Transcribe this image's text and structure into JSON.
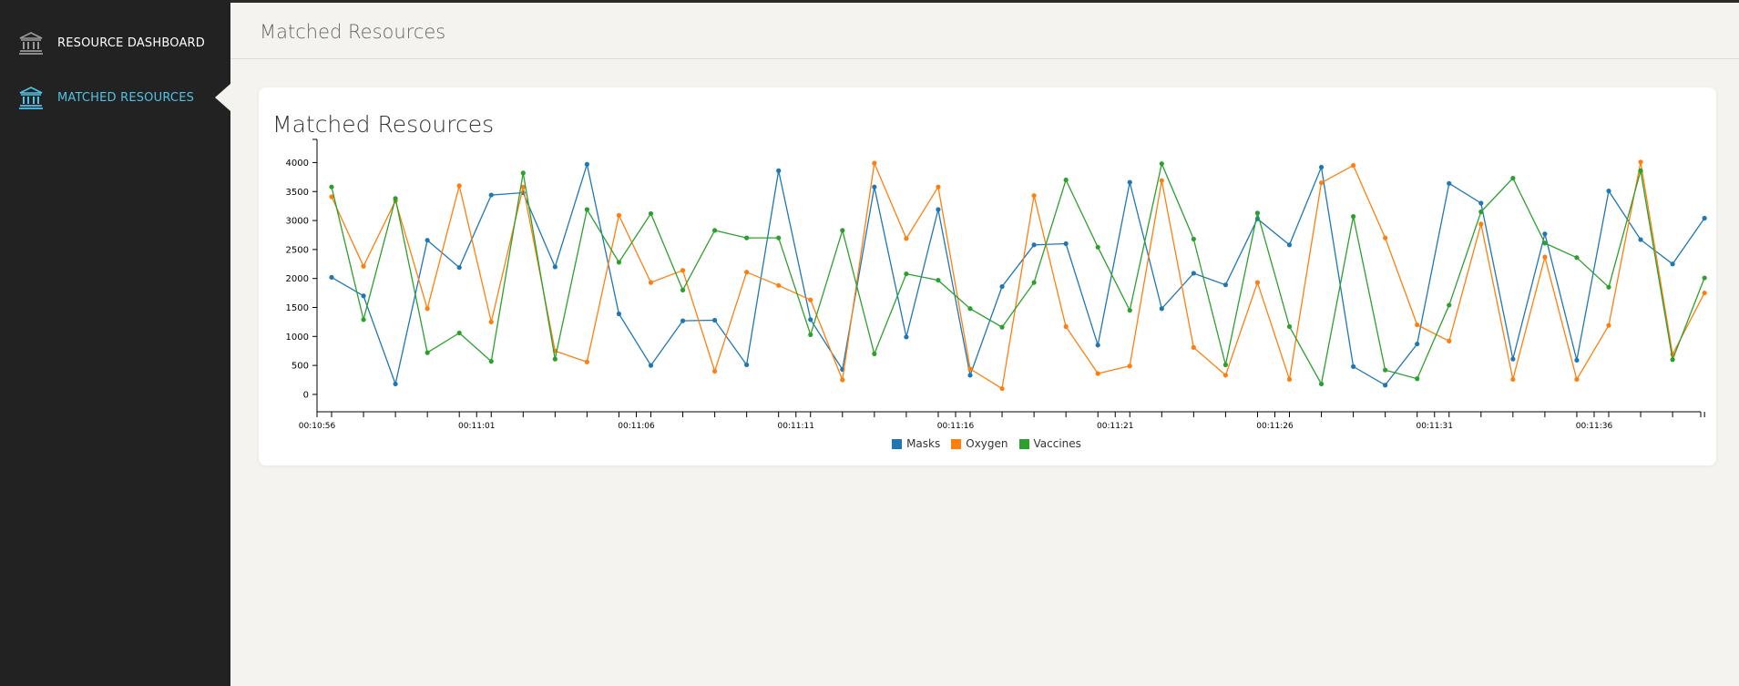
{
  "sidebar": {
    "items": [
      {
        "label": "RESOURCE DASHBOARD",
        "icon": "bank-icon",
        "active": false
      },
      {
        "label": "MATCHED RESOURCES",
        "icon": "bank-icon",
        "active": true
      }
    ]
  },
  "header": {
    "title": "Matched Resources"
  },
  "card": {
    "title": "Matched Resources"
  },
  "colors": {
    "masks": "#1f77b4",
    "oxygen": "#ff7f0e",
    "vaccines": "#2ca02c",
    "active_nav": "#4fc3e8"
  },
  "chart_data": {
    "type": "line",
    "title": "Matched Resources",
    "xlabel": "",
    "ylabel": "",
    "ylim": [
      -300,
      4400
    ],
    "yticks": [
      0,
      500,
      1000,
      1500,
      2000,
      2500,
      3000,
      3500,
      4000
    ],
    "x_start": "00:10:56",
    "x_step_seconds": 1,
    "xticks": [
      "00:10:56",
      "00:11:01",
      "00:11:06",
      "00:11:11",
      "00:11:16",
      "00:11:21",
      "00:11:26",
      "00:11:31",
      "00:11:36"
    ],
    "legend_position": "bottom-center",
    "series": [
      {
        "name": "Masks",
        "values": [
          2020,
          1700,
          180,
          2660,
          2190,
          3440,
          3480,
          2200,
          3970,
          1390,
          500,
          1270,
          1280,
          510,
          3860,
          1290,
          430,
          3580,
          990,
          3190,
          330,
          1860,
          2580,
          2600,
          850,
          3660,
          1480,
          2090,
          1890,
          3030,
          2580,
          3920,
          480,
          160,
          870,
          3640,
          3300,
          610,
          2770,
          590,
          3510,
          2670,
          2250,
          3040
        ]
      },
      {
        "name": "Oxygen",
        "values": [
          3410,
          2210,
          3340,
          1480,
          3600,
          1250,
          3580,
          750,
          560,
          3090,
          1930,
          2140,
          400,
          2110,
          1880,
          1630,
          250,
          3990,
          2690,
          3580,
          440,
          100,
          3430,
          1170,
          360,
          490,
          3690,
          810,
          330,
          1930,
          260,
          3650,
          3950,
          2700,
          1200,
          920,
          2940,
          260,
          2370,
          260,
          1190,
          4010,
          690,
          1750
        ]
      },
      {
        "name": "Vaccines",
        "values": [
          3580,
          1290,
          3380,
          720,
          1060,
          570,
          3820,
          610,
          3190,
          2280,
          3120,
          1800,
          2830,
          2700,
          2700,
          1030,
          2830,
          700,
          2080,
          1970,
          1480,
          1160,
          1930,
          3700,
          2540,
          1450,
          3980,
          2680,
          510,
          3130,
          1170,
          180,
          3070,
          420,
          270,
          1540,
          3150,
          3730,
          2610,
          2360,
          1850,
          3860,
          600,
          2010
        ]
      }
    ]
  }
}
